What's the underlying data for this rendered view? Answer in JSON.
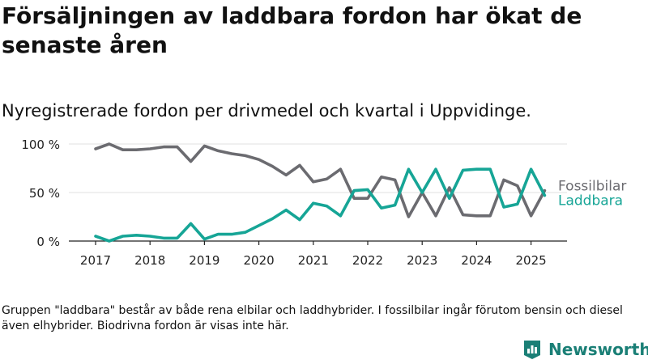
{
  "title": "Försäljningen av laddbara fordon har ökat de senaste åren",
  "subtitle": "Nyregistrerade fordon per drivmedel och kvartal i Uppvidinge.",
  "note": "Gruppen \"laddbara\" består av både rena elbilar och laddhybrider. I fossilbilar ingår förutom bensin och diesel även elhybrider. Biodrivna fordon är visas inte här.",
  "brand": {
    "name": "Newsworthy"
  },
  "chart_data": {
    "type": "line",
    "x": [
      "2017 Q1",
      "2017 Q2",
      "2017 Q3",
      "2017 Q4",
      "2018 Q1",
      "2018 Q2",
      "2018 Q3",
      "2018 Q4",
      "2019 Q1",
      "2019 Q2",
      "2019 Q3",
      "2019 Q4",
      "2020 Q1",
      "2020 Q2",
      "2020 Q3",
      "2020 Q4",
      "2021 Q1",
      "2021 Q2",
      "2021 Q3",
      "2021 Q4",
      "2022 Q1",
      "2022 Q2",
      "2022 Q3",
      "2022 Q4",
      "2023 Q1",
      "2023 Q2",
      "2023 Q3",
      "2023 Q4",
      "2024 Q1",
      "2024 Q2",
      "2024 Q3",
      "2024 Q4",
      "2025 Q1",
      "2025 Q2"
    ],
    "x_ticks": [
      "2017",
      "2018",
      "2019",
      "2020",
      "2021",
      "2022",
      "2023",
      "2024",
      "2025"
    ],
    "y_ticks": [
      "0 %",
      "50 %",
      "100 %"
    ],
    "ylim": [
      0,
      100
    ],
    "series": [
      {
        "name": "Fossilbilar",
        "color": "#6b6b70",
        "values": [
          95,
          100,
          94,
          94,
          95,
          97,
          97,
          82,
          98,
          93,
          90,
          88,
          84,
          77,
          68,
          78,
          61,
          64,
          74,
          44,
          44,
          66,
          63,
          25,
          50,
          26,
          55,
          27,
          26,
          26,
          63,
          57,
          26,
          52
        ]
      },
      {
        "name": "Laddbara",
        "color": "#16a596",
        "values": [
          5,
          0,
          5,
          6,
          5,
          3,
          3,
          18,
          2,
          7,
          7,
          9,
          16,
          23,
          32,
          22,
          39,
          36,
          26,
          52,
          53,
          34,
          37,
          74,
          50,
          74,
          44,
          73,
          74,
          74,
          35,
          38,
          74,
          47
        ]
      }
    ]
  }
}
